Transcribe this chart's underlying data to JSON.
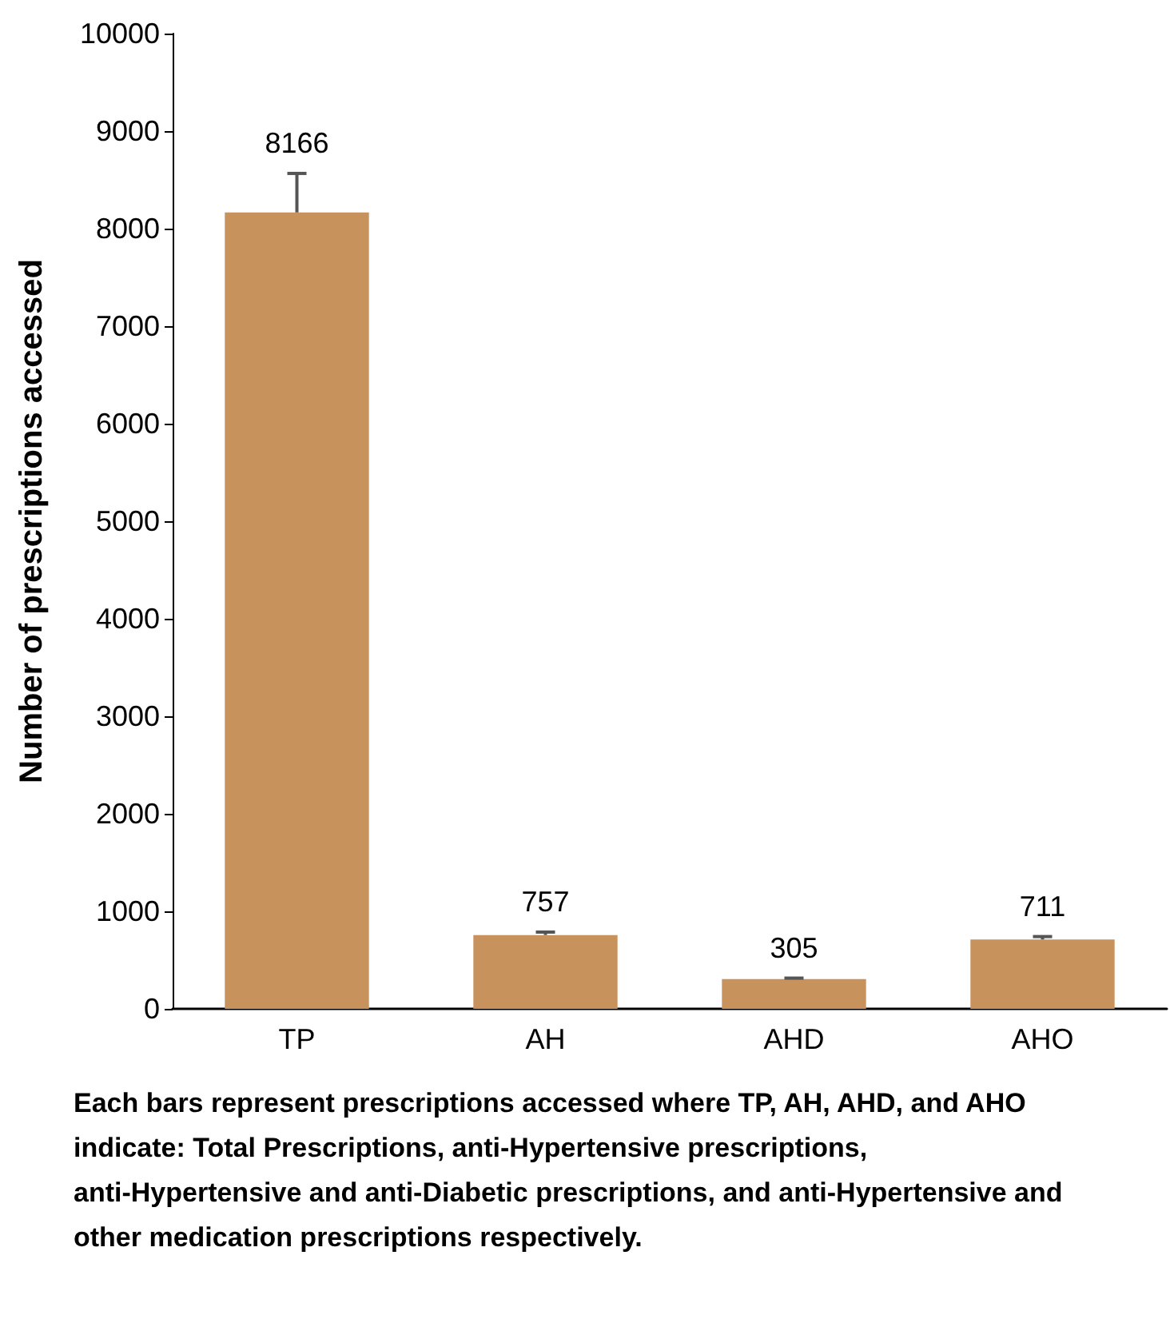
{
  "chart_data": {
    "type": "bar",
    "xlabel": "Each bars represent prescriptions accessed where TP, AH, AHD, and AHO indicate: Total Prescriptions, anti-Hypertensive prescriptions, anti-Hypertensive and anti-Diabetic prescriptions, and anti-Hypertensive and other medication prescriptions respectively.",
    "ylabel": "Number of prescriptions accessed",
    "categories": [
      "TP",
      "AH",
      "AHD",
      "AHO"
    ],
    "values": [
      8166,
      757,
      305,
      711
    ],
    "errors": [
      [
        8166,
        8566
      ],
      [
        757,
        787
      ],
      [
        305,
        315
      ],
      [
        711,
        741
      ]
    ],
    "data_labels": true,
    "color": "#c8925c",
    "ylim": [
      0,
      10000
    ],
    "yticks": [
      0,
      1000,
      2000,
      3000,
      4000,
      5000,
      6000,
      7000,
      8000,
      9000,
      10000
    ],
    "grid": false
  }
}
